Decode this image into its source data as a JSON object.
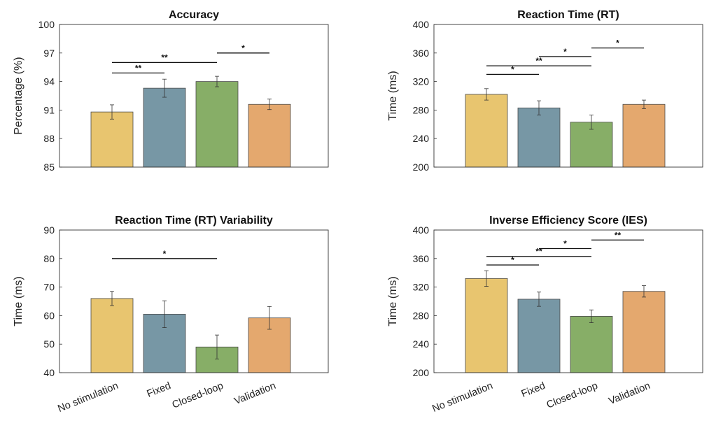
{
  "colors": {
    "No stimulation": "#e8c56f",
    "Fixed": "#7797a5",
    "Closed-loop": "#87ae67",
    "Validation": "#e4a86e"
  },
  "chart_data": [
    {
      "type": "bar",
      "title": "Accuracy",
      "ylabel": "Percentage (%)",
      "ylim": [
        85,
        100
      ],
      "yticks": [
        85,
        88,
        91,
        94,
        97,
        100
      ],
      "categories": [
        "No stimulation",
        "Fixed",
        "Closed-loop",
        "Validation"
      ],
      "values": [
        90.8,
        93.3,
        94.0,
        91.6
      ],
      "errors": [
        0.75,
        0.95,
        0.55,
        0.55
      ],
      "significance": [
        {
          "from": 0,
          "to": 1,
          "y": 94.9,
          "label": "**"
        },
        {
          "from": 0,
          "to": 2,
          "y": 96.0,
          "label": "**"
        },
        {
          "from": 2,
          "to": 3,
          "y": 97.0,
          "label": "*"
        }
      ]
    },
    {
      "type": "bar",
      "title": "Reaction Time (RT)",
      "ylabel": "Time (ms)",
      "ylim": [
        200,
        400
      ],
      "yticks": [
        200,
        240,
        280,
        320,
        360,
        400
      ],
      "categories": [
        "No stimulation",
        "Fixed",
        "Closed-loop",
        "Validation"
      ],
      "values": [
        302,
        283,
        263,
        288
      ],
      "errors": [
        8,
        10,
        10,
        6
      ],
      "significance": [
        {
          "from": 0,
          "to": 1,
          "y": 330,
          "label": "*"
        },
        {
          "from": 0,
          "to": 2,
          "y": 342,
          "label": "**"
        },
        {
          "from": 1,
          "to": 2,
          "y": 355,
          "label": "*"
        },
        {
          "from": 2,
          "to": 3,
          "y": 367,
          "label": "*"
        }
      ]
    },
    {
      "type": "bar",
      "title": "Reaction Time (RT) Variability",
      "ylabel": "Time (ms)",
      "ylim": [
        40,
        90
      ],
      "yticks": [
        40,
        50,
        60,
        70,
        80,
        90
      ],
      "categories": [
        "No stimulation",
        "Fixed",
        "Closed-loop",
        "Validation"
      ],
      "values": [
        66.0,
        60.5,
        49.0,
        59.2
      ],
      "errors": [
        2.5,
        4.7,
        4.2,
        4.0
      ],
      "significance": [
        {
          "from": 0,
          "to": 2,
          "y": 80,
          "label": "*"
        }
      ]
    },
    {
      "type": "bar",
      "title": "Inverse Efficiency Score (IES)",
      "ylabel": "Time (ms)",
      "ylim": [
        200,
        400
      ],
      "yticks": [
        200,
        240,
        280,
        320,
        360,
        400
      ],
      "categories": [
        "No stimulation",
        "Fixed",
        "Closed-loop",
        "Validation"
      ],
      "values": [
        332,
        303,
        279,
        314
      ],
      "errors": [
        11,
        10,
        9,
        8
      ],
      "significance": [
        {
          "from": 0,
          "to": 1,
          "y": 351,
          "label": "*"
        },
        {
          "from": 0,
          "to": 2,
          "y": 363,
          "label": "**"
        },
        {
          "from": 1,
          "to": 2,
          "y": 374,
          "label": "*"
        },
        {
          "from": 2,
          "to": 3,
          "y": 386,
          "label": "**"
        }
      ]
    }
  ]
}
